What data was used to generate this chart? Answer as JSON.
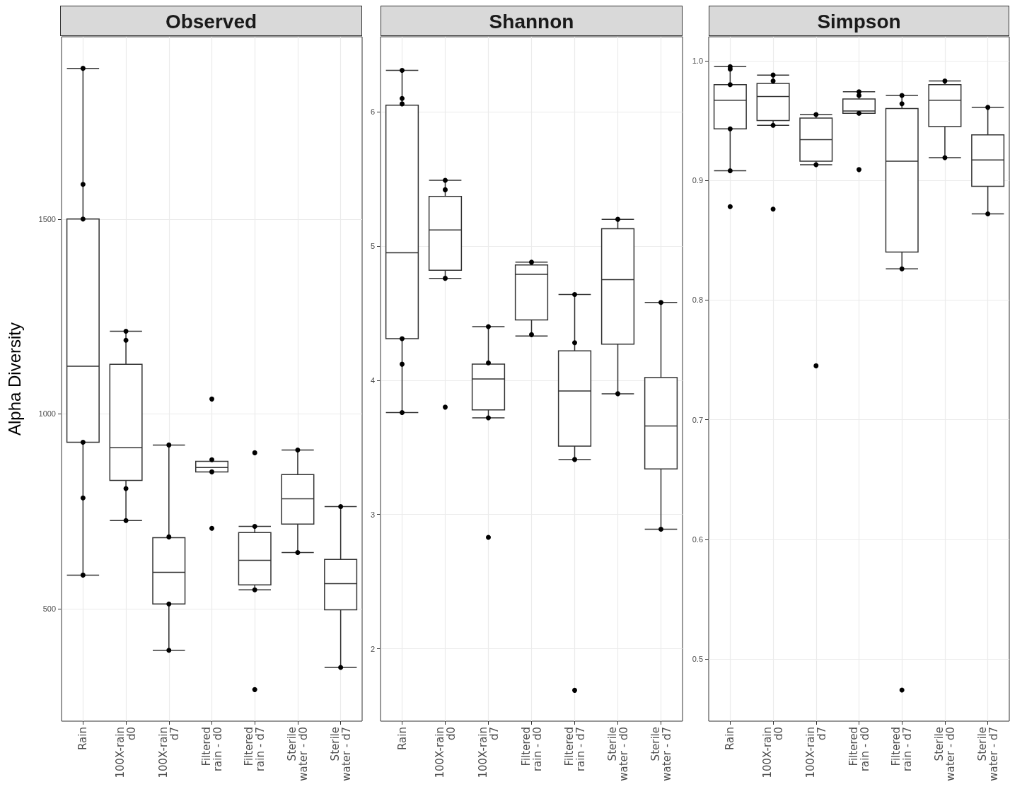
{
  "chart_data": [
    {
      "type": "box",
      "title": "Observed",
      "ylabel": "Alpha Diversity",
      "categories": [
        "Rain",
        "100X-rain d0",
        "100X-rain d7",
        "Filtered rain - d0",
        "Filtered rain - d7",
        "Sterile water - d0",
        "Sterile water - d7"
      ],
      "boxes": [
        {
          "low": 586,
          "q1": 927,
          "median": 1122,
          "q3": 1500,
          "high": 1887
        },
        {
          "low": 726,
          "q1": 829,
          "median": 913,
          "q3": 1127,
          "high": 1212
        },
        {
          "low": 393,
          "q1": 512,
          "median": 593,
          "q3": 682,
          "high": 920
        },
        {
          "low": 851,
          "q1": 851,
          "median": 862,
          "q3": 878,
          "high": 878
        },
        {
          "low": 548,
          "q1": 561,
          "median": 624,
          "q3": 695,
          "high": 711
        },
        {
          "low": 644,
          "q1": 717,
          "median": 782,
          "q3": 844,
          "high": 907
        },
        {
          "low": 349,
          "q1": 497,
          "median": 564,
          "q3": 626,
          "high": 762
        }
      ],
      "series": [
        {
          "type": "scatter",
          "color": "#000000",
          "x": [
            "Rain",
            "Rain",
            "Rain",
            "Rain",
            "Rain",
            "Rain",
            "100X-rain d0",
            "100X-rain d0",
            "100X-rain d0",
            "100X-rain d0",
            "100X-rain d7",
            "100X-rain d7",
            "100X-rain d7",
            "100X-rain d7",
            "Filtered rain - d0",
            "Filtered rain - d0",
            "Filtered rain - d0",
            "Filtered rain - d0",
            "Filtered rain - d7",
            "Filtered rain - d7",
            "Filtered rain - d7",
            "Filtered rain - d7",
            "Sterile water - d0",
            "Sterile water - d0",
            "Sterile water - d7",
            "Sterile water - d7"
          ],
          "values": [
            1887,
            1589,
            1500,
            927,
            784,
            586,
            1212,
            1189,
            808,
            726,
            920,
            684,
            512,
            393,
            1038,
            882,
            851,
            706,
            900,
            711,
            548,
            292,
            907,
            644,
            762,
            349
          ]
        }
      ],
      "ylim": [
        211,
        1968
      ],
      "yticks": [
        500,
        1000,
        1500
      ],
      "grid": true
    },
    {
      "type": "box",
      "title": "Shannon",
      "categories": [
        "Rain",
        "100X-rain d0",
        "100X-rain d7",
        "Filtered rain - d0",
        "Filtered rain - d7",
        "Sterile water - d0",
        "Sterile water - d7"
      ],
      "boxes": [
        {
          "low": 3.76,
          "q1": 4.31,
          "median": 4.95,
          "q3": 6.05,
          "high": 6.31
        },
        {
          "low": 4.76,
          "q1": 4.82,
          "median": 5.12,
          "q3": 5.37,
          "high": 5.49
        },
        {
          "low": 3.72,
          "q1": 3.78,
          "median": 4.01,
          "q3": 4.12,
          "high": 4.4
        },
        {
          "low": 4.33,
          "q1": 4.45,
          "median": 4.79,
          "q3": 4.86,
          "high": 4.88
        },
        {
          "low": 3.41,
          "q1": 3.51,
          "median": 3.92,
          "q3": 4.22,
          "high": 4.64
        },
        {
          "low": 3.9,
          "q1": 4.27,
          "median": 4.75,
          "q3": 5.13,
          "high": 5.2
        },
        {
          "low": 2.89,
          "q1": 3.34,
          "median": 3.66,
          "q3": 4.02,
          "high": 4.58
        }
      ],
      "series": [
        {
          "type": "scatter",
          "color": "#000000",
          "x": [
            "Rain",
            "Rain",
            "Rain",
            "Rain",
            "Rain",
            "Rain",
            "100X-rain d0",
            "100X-rain d0",
            "100X-rain d0",
            "100X-rain d0",
            "100X-rain d7",
            "100X-rain d7",
            "100X-rain d7",
            "100X-rain d7",
            "Filtered rain - d0",
            "Filtered rain - d0",
            "Filtered rain - d0",
            "Filtered rain - d0",
            "Filtered rain - d7",
            "Filtered rain - d7",
            "Filtered rain - d7",
            "Filtered rain - d7",
            "Sterile water - d0",
            "Sterile water - d0",
            "Sterile water - d7",
            "Sterile water - d7"
          ],
          "values": [
            6.31,
            6.1,
            6.06,
            4.31,
            4.12,
            3.76,
            5.49,
            5.42,
            4.76,
            3.8,
            4.4,
            4.13,
            3.72,
            2.83,
            4.88,
            null,
            4.34,
            null,
            4.64,
            4.28,
            3.41,
            1.69,
            5.2,
            3.9,
            4.58,
            2.89
          ]
        }
      ],
      "ylim": [
        1.46,
        6.56
      ],
      "yticks": [
        2,
        3,
        4,
        5,
        6
      ],
      "grid": true
    },
    {
      "type": "box",
      "title": "Simpson",
      "categories": [
        "Rain",
        "100X-rain d0",
        "100X-rain d7",
        "Filtered rain - d0",
        "Filtered rain - d7",
        "Sterile water - d0",
        "Sterile water - d7"
      ],
      "boxes": [
        {
          "low": 0.908,
          "q1": 0.943,
          "median": 0.967,
          "q3": 0.98,
          "high": 0.995
        },
        {
          "low": 0.946,
          "q1": 0.95,
          "median": 0.97,
          "q3": 0.981,
          "high": 0.988
        },
        {
          "low": 0.913,
          "q1": 0.916,
          "median": 0.934,
          "q3": 0.952,
          "high": 0.955
        },
        {
          "low": 0.956,
          "q1": 0.956,
          "median": 0.958,
          "q3": 0.968,
          "high": 0.974
        },
        {
          "low": 0.826,
          "q1": 0.84,
          "median": 0.916,
          "q3": 0.96,
          "high": 0.971
        },
        {
          "low": 0.919,
          "q1": 0.945,
          "median": 0.967,
          "q3": 0.98,
          "high": 0.983
        },
        {
          "low": 0.872,
          "q1": 0.895,
          "median": 0.917,
          "q3": 0.938,
          "high": 0.961
        }
      ],
      "series": [
        {
          "type": "scatter",
          "color": "#000000",
          "x": [
            "Rain",
            "Rain",
            "Rain",
            "Rain",
            "Rain",
            "Rain",
            "100X-rain d0",
            "100X-rain d0",
            "100X-rain d0",
            "100X-rain d0",
            "100X-rain d7",
            "100X-rain d7",
            "100X-rain d7",
            "100X-rain d7",
            "Filtered rain - d0",
            "Filtered rain - d0",
            "Filtered rain - d0",
            "Filtered rain - d0",
            "Filtered rain - d0",
            "Filtered rain - d7",
            "Filtered rain - d7",
            "Filtered rain - d7",
            "Filtered rain - d7",
            "Sterile water - d0",
            "Sterile water - d0",
            "Sterile water - d7",
            "Sterile water - d7"
          ],
          "values": [
            0.995,
            0.993,
            0.98,
            0.943,
            0.908,
            0.878,
            0.988,
            0.983,
            0.946,
            0.876,
            0.955,
            null,
            0.913,
            0.745,
            0.974,
            0.971,
            0.956,
            null,
            0.909,
            0.971,
            0.964,
            0.826,
            0.474,
            0.983,
            0.919,
            0.961,
            0.872
          ]
        }
      ],
      "ylim": [
        0.448,
        1.02
      ],
      "yticks": [
        0.5,
        0.6,
        0.7,
        0.8,
        0.9,
        {
          "value": 1,
          "label": "1.0"
        }
      ],
      "grid": true
    }
  ]
}
